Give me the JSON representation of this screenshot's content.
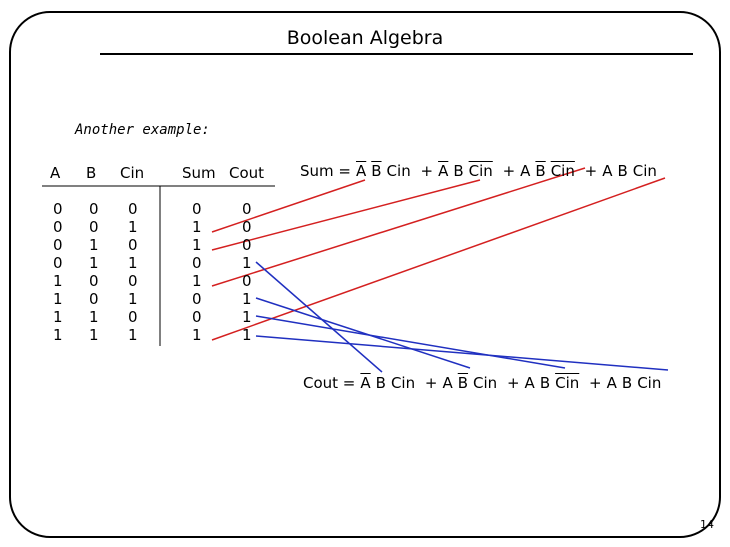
{
  "header": {
    "title": "Boolean Algebra"
  },
  "subtitle": "Another example:",
  "table": {
    "headers": [
      "A",
      "B",
      "Cin",
      "Sum",
      "Cout"
    ],
    "rows": [
      [
        "0",
        "0",
        "0",
        "0",
        "0"
      ],
      [
        "0",
        "0",
        "1",
        "1",
        "0"
      ],
      [
        "0",
        "1",
        "0",
        "1",
        "0"
      ],
      [
        "0",
        "1",
        "1",
        "0",
        "1"
      ],
      [
        "1",
        "0",
        "0",
        "1",
        "0"
      ],
      [
        "1",
        "0",
        "1",
        "0",
        "1"
      ],
      [
        "1",
        "1",
        "0",
        "0",
        "1"
      ],
      [
        "1",
        "1",
        "1",
        "1",
        "1"
      ]
    ]
  },
  "sum_equation": {
    "lhs": "Sum =",
    "terms": [
      [
        "A",
        "B",
        "Cin"
      ],
      [
        "A",
        "B",
        "Cin"
      ],
      [
        "A",
        "B",
        "Cin"
      ],
      [
        "A",
        "B",
        "Cin"
      ]
    ]
  },
  "cout_equation": {
    "lhs": "Cout =",
    "terms": [
      [
        "A",
        "B",
        "Cin"
      ],
      [
        "A",
        "B",
        "Cin"
      ],
      [
        "A",
        "B",
        "Cin"
      ],
      [
        "A",
        "B",
        "Cin"
      ]
    ]
  },
  "plus": "+",
  "page_number": "14"
}
